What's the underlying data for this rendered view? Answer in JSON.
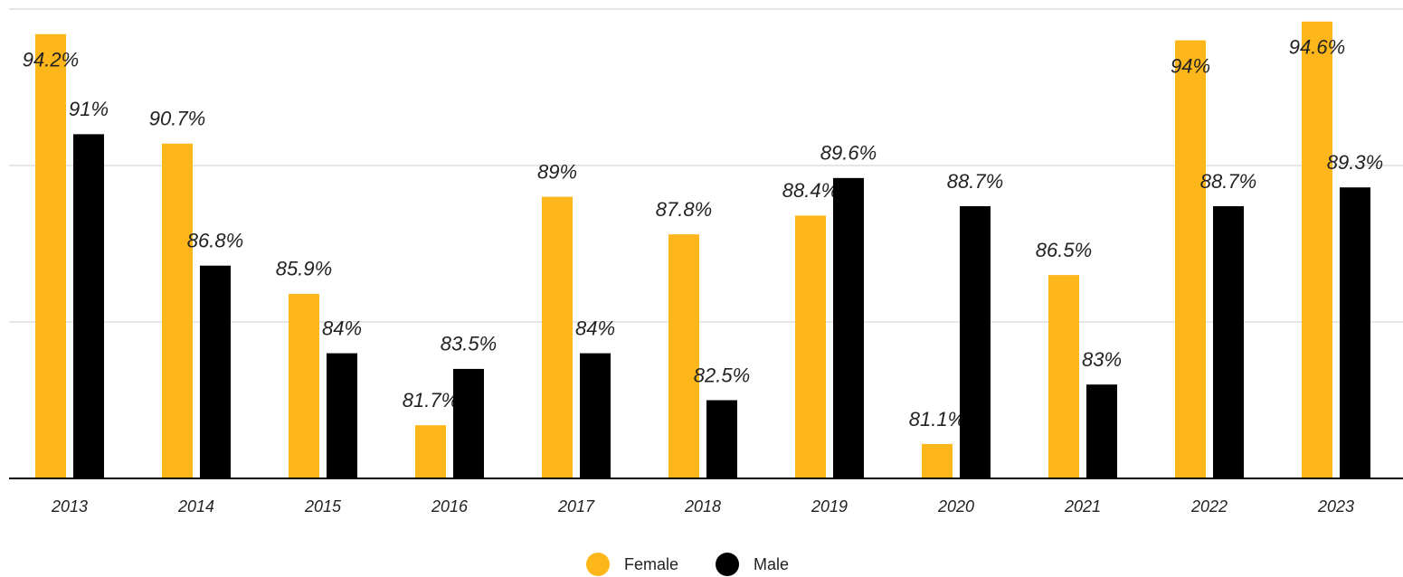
{
  "chart_data": {
    "type": "bar",
    "categories": [
      "2013",
      "2014",
      "2015",
      "2016",
      "2017",
      "2018",
      "2019",
      "2020",
      "2021",
      "2022",
      "2023"
    ],
    "series": [
      {
        "name": "Female",
        "color": "#fdb71a",
        "values": [
          94.2,
          90.7,
          85.9,
          81.7,
          89,
          87.8,
          88.4,
          81.1,
          86.5,
          94,
          94.6
        ],
        "value_labels": [
          "94.2%",
          "90.7%",
          "85.9%",
          "81.7%",
          "89%",
          "87.8%",
          "88.4%",
          "81.1%",
          "86.5%",
          "94%",
          "94.6%"
        ]
      },
      {
        "name": "Male",
        "color": "#000000",
        "values": [
          91,
          86.8,
          84,
          83.5,
          84,
          82.5,
          89.6,
          88.7,
          83,
          88.7,
          89.3
        ],
        "value_labels": [
          "91%",
          "86.8%",
          "84%",
          "83.5%",
          "84%",
          "82.5%",
          "89.6%",
          "88.7%",
          "83%",
          "88.7%",
          "89.3%"
        ]
      }
    ],
    "ylim": [
      80,
      95
    ],
    "yticks": [
      80,
      85,
      90,
      95
    ],
    "grid": true,
    "legend": "bottom"
  }
}
